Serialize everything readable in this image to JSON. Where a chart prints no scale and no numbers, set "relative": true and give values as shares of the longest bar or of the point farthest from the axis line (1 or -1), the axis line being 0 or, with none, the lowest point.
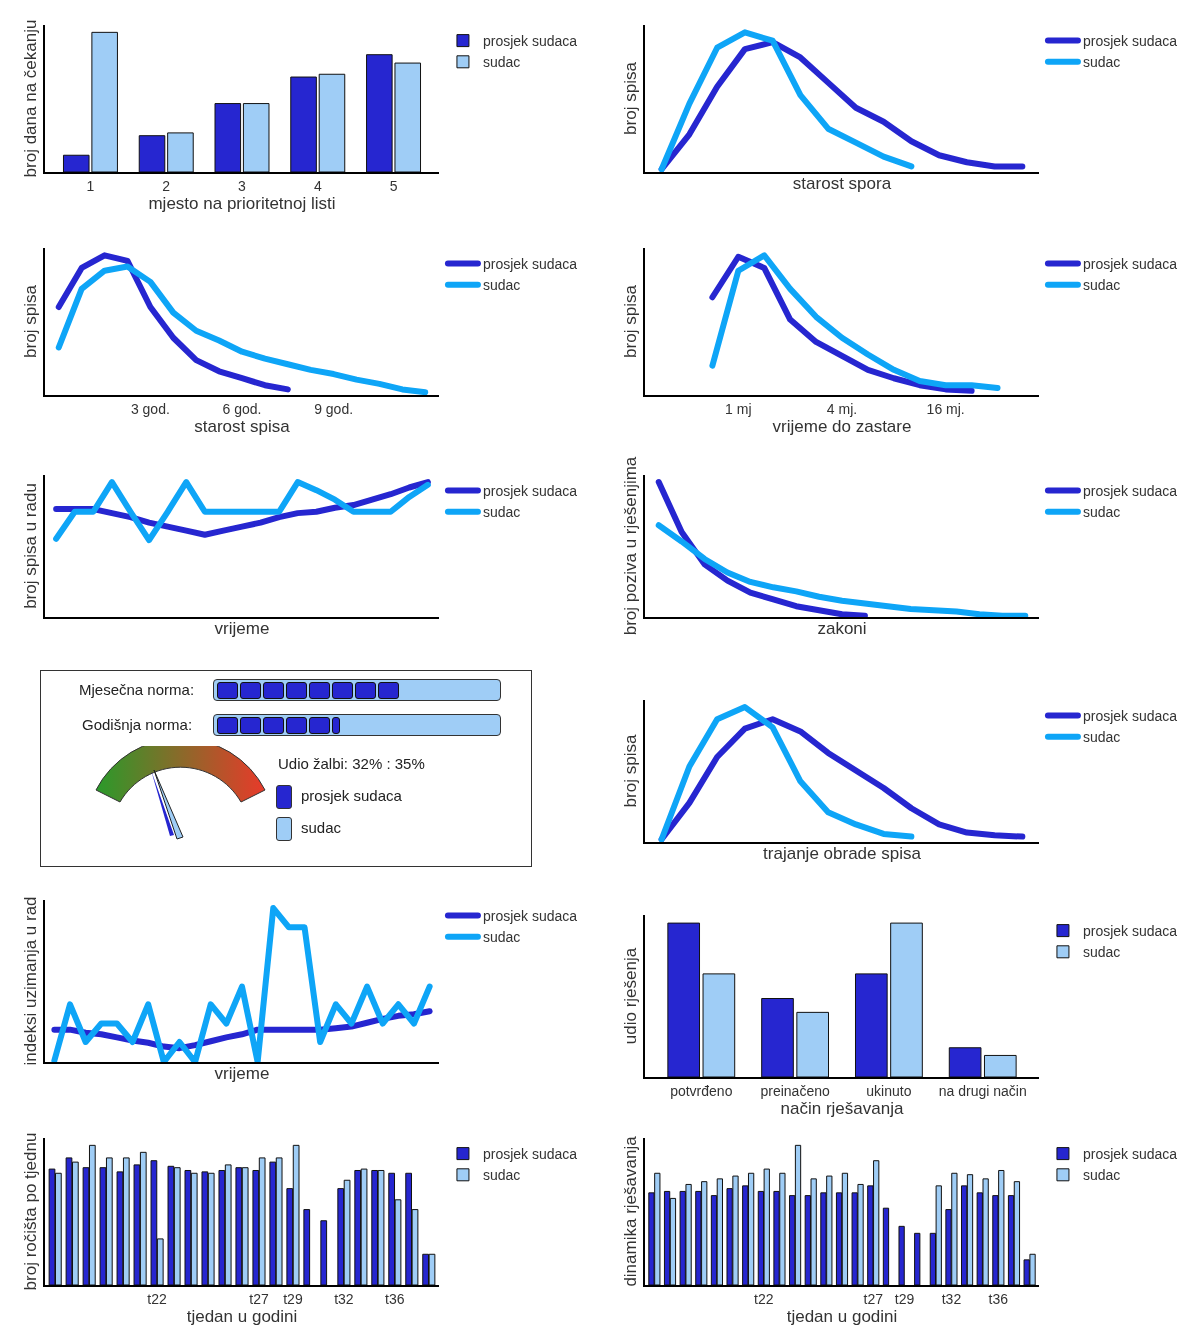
{
  "chart_data": [
    {
      "type": "bar",
      "relative": true,
      "xlabel": "mjesto na prioritetnoj listi",
      "ylabel": "broj dana na čekanju",
      "categories": [
        "1",
        "2",
        "3",
        "4",
        "5"
      ],
      "legend": "top right",
      "tick_labels": "x",
      "series": [
        {
          "name": "prosjek sudaca",
          "color": "#2626d0",
          "values": [
            0.12,
            0.26,
            0.49,
            0.68,
            0.84
          ]
        },
        {
          "name": "sudac",
          "color": "#9fcdf6",
          "values": [
            1.0,
            0.28,
            0.49,
            0.7,
            0.78
          ]
        }
      ]
    },
    {
      "type": "line",
      "relative": true,
      "xlabel": "starost spora",
      "ylabel": "broj spisa",
      "categories": [
        null,
        null,
        null,
        null,
        null,
        null,
        null,
        null,
        null,
        null,
        null,
        null,
        null,
        null
      ],
      "legend": "top right",
      "tick_labels": false,
      "series": [
        {
          "name": "prosjek sudaca",
          "color": "#2626d0",
          "values": [
            0.02,
            0.27,
            0.61,
            0.88,
            0.93,
            0.82,
            0.64,
            0.46,
            0.36,
            0.22,
            0.12,
            0.07,
            0.04,
            0.04
          ]
        },
        {
          "name": "sudac",
          "color": "#0ea5f7",
          "values": [
            0.02,
            0.49,
            0.89,
            1.0,
            0.94,
            0.55,
            0.31,
            0.21,
            0.11,
            0.04,
            null,
            null,
            null,
            null
          ]
        }
      ]
    },
    {
      "type": "line",
      "relative": true,
      "xlabel": "starost spisa",
      "ylabel": "broj spisa",
      "categories": [
        null,
        null,
        null,
        null,
        "3 god.",
        null,
        null,
        null,
        "6 god.",
        null,
        null,
        null,
        "9 god.",
        null,
        null,
        null,
        null
      ],
      "legend": "top right",
      "tick_labels": "x",
      "series": [
        {
          "name": "prosjek sudaca",
          "color": "#2626d0",
          "values": [
            0.63,
            0.91,
            1.0,
            0.96,
            0.63,
            0.41,
            0.25,
            0.17,
            0.12,
            0.07,
            0.04,
            null,
            null,
            null,
            null,
            null,
            null
          ]
        },
        {
          "name": "sudac",
          "color": "#0ea5f7",
          "values": [
            0.34,
            0.76,
            0.89,
            0.92,
            0.81,
            0.59,
            0.46,
            0.39,
            0.31,
            0.26,
            0.22,
            0.18,
            0.15,
            0.11,
            0.08,
            0.04,
            0.02
          ]
        }
      ]
    },
    {
      "type": "line",
      "relative": true,
      "xlabel": "vrijeme do zastare",
      "ylabel": "broj spisa",
      "categories": [
        null,
        null,
        null,
        "1 mj",
        null,
        null,
        null,
        "4 mj.",
        null,
        null,
        null,
        "16 mj.",
        null,
        null,
        null
      ],
      "legend": "top right",
      "tick_labels": "x",
      "series": [
        {
          "name": "prosjek sudaca",
          "color": "#2626d0",
          "values": [
            null,
            null,
            0.7,
            0.99,
            0.91,
            0.54,
            0.38,
            0.28,
            0.18,
            0.12,
            0.07,
            0.04,
            0.03,
            null,
            null
          ]
        },
        {
          "name": "sudac",
          "color": "#0ea5f7",
          "values": [
            null,
            null,
            0.21,
            0.89,
            1.0,
            0.76,
            0.56,
            0.41,
            0.29,
            0.18,
            0.1,
            0.07,
            0.07,
            0.05,
            null
          ]
        }
      ]
    },
    {
      "type": "line",
      "relative": true,
      "xlabel": "vrijeme",
      "ylabel": "broj spisa u radu",
      "categories": [
        null,
        null,
        null,
        null,
        null,
        null,
        null,
        null,
        null,
        null,
        null,
        null,
        null,
        null,
        null,
        null,
        null,
        null,
        null,
        null,
        null
      ],
      "legend": "top right",
      "tick_labels": false,
      "series": [
        {
          "name": "prosjek sudaca",
          "color": "#2626d0",
          "values": [
            0.8,
            0.8,
            0.8,
            0.77,
            0.74,
            0.7,
            0.67,
            0.64,
            0.61,
            0.64,
            0.67,
            0.7,
            0.74,
            0.77,
            0.78,
            0.81,
            0.83,
            0.87,
            0.91,
            0.96,
            1.0
          ]
        },
        {
          "name": "sudac",
          "color": "#0ea5f7",
          "values": [
            0.58,
            0.78,
            0.78,
            1.0,
            0.78,
            0.57,
            0.78,
            1.0,
            0.78,
            0.78,
            0.78,
            0.78,
            0.78,
            1.0,
            0.94,
            0.87,
            0.78,
            0.78,
            0.78,
            0.89,
            0.98
          ]
        }
      ]
    },
    {
      "type": "line",
      "relative": true,
      "xlabel": "zakoni",
      "ylabel": "broj poziva u rješenjima",
      "categories": [
        null,
        null,
        null,
        null,
        null,
        null,
        null,
        null,
        null,
        null,
        null,
        null,
        null,
        null,
        null,
        null,
        null
      ],
      "legend": "top right",
      "tick_labels": false,
      "series": [
        {
          "name": "prosjek sudaca",
          "color": "#2626d0",
          "values": [
            1.0,
            0.63,
            0.39,
            0.27,
            0.18,
            0.13,
            0.08,
            0.05,
            0.02,
            0.01,
            null,
            null,
            null,
            null,
            null,
            null,
            null
          ]
        },
        {
          "name": "sudac",
          "color": "#0ea5f7",
          "values": [
            0.68,
            0.56,
            0.43,
            0.33,
            0.26,
            0.22,
            0.19,
            0.15,
            0.12,
            0.1,
            0.08,
            0.06,
            0.05,
            0.04,
            0.02,
            0.01,
            0.01
          ]
        }
      ]
    },
    {
      "type": "other",
      "annotations": [
        "Mjesečna norma:",
        "Godišnja norma:",
        "Udio žalbi: 32% : 35%",
        "prosjek sudaca",
        "sudac"
      ]
    },
    {
      "type": "line",
      "relative": true,
      "xlabel": "trajanje obrade spisa",
      "ylabel": "broj spisa",
      "categories": [
        null,
        null,
        null,
        null,
        null,
        null,
        null,
        null,
        null,
        null,
        null,
        null,
        null,
        null
      ],
      "legend": "top right",
      "tick_labels": false,
      "series": [
        {
          "name": "prosjek sudaca",
          "color": "#2626d0",
          "values": [
            0.02,
            0.29,
            0.63,
            0.84,
            0.91,
            0.82,
            0.66,
            0.53,
            0.4,
            0.25,
            0.13,
            0.07,
            0.05,
            0.04
          ]
        },
        {
          "name": "sudac",
          "color": "#0ea5f7",
          "values": [
            0.02,
            0.56,
            0.91,
            1.0,
            0.85,
            0.45,
            0.22,
            0.13,
            0.06,
            0.04,
            null,
            null,
            null,
            null
          ]
        }
      ]
    },
    {
      "type": "line",
      "relative": true,
      "xlabel": "vrijeme",
      "ylabel": "indeksi uzimanja u rad",
      "categories": [
        null,
        null,
        null,
        null,
        null,
        null,
        null,
        null,
        null,
        null,
        null,
        null,
        null,
        null,
        null,
        null,
        null,
        null,
        null,
        null,
        null,
        null,
        null,
        null,
        null
      ],
      "legend": "top right",
      "tick_labels": false,
      "series": [
        {
          "name": "prosjek sudaca",
          "color": "#2626d0",
          "values": [
            0.21,
            0.21,
            0.19,
            0.18,
            0.16,
            0.14,
            0.125,
            0.1,
            0.09,
            0.11,
            0.135,
            0.16,
            0.18,
            0.21,
            0.21,
            0.21,
            0.21,
            0.21,
            0.22,
            0.23,
            0.255,
            0.28,
            0.3,
            0.31,
            0.33
          ]
        },
        {
          "name": "sudac",
          "color": "#0ea5f7",
          "values": [
            0.01,
            0.375,
            0.13,
            0.25,
            0.25,
            0.13,
            0.375,
            0,
            0.13,
            0,
            0.375,
            0.25,
            0.49,
            0,
            1.0,
            0.875,
            0.875,
            0.13,
            0.375,
            0.25,
            0.49,
            0.25,
            0.375,
            0.25,
            0.49
          ]
        }
      ]
    },
    {
      "type": "bar",
      "relative": true,
      "xlabel": "način rješavanja",
      "ylabel": "udio rješenja",
      "categories": [
        "potvrđeno",
        "preinačeno",
        "ukinuto",
        "na drugi način"
      ],
      "legend": "top right",
      "tick_labels": "x",
      "series": [
        {
          "name": "prosjek sudaca",
          "color": "#2626d0",
          "values": [
            1.0,
            0.51,
            0.67,
            0.19
          ]
        },
        {
          "name": "sudac",
          "color": "#9fcdf6",
          "values": [
            0.67,
            0.42,
            1.0,
            0.14
          ]
        }
      ]
    },
    {
      "type": "bar",
      "relative": true,
      "xlabel": "tjedan u godini",
      "ylabel": "broj ročišta po tjednu",
      "categories": [
        null,
        null,
        null,
        null,
        null,
        null,
        "t22",
        null,
        null,
        null,
        null,
        null,
        "t27",
        null,
        "t29",
        null,
        null,
        "t32",
        null,
        null,
        "t36",
        null,
        null
      ],
      "legend": "top right",
      "tick_labels": "x",
      "series": [
        {
          "name": "prosjek sudaca",
          "color": "#2626d0",
          "values": [
            0.83,
            0.91,
            0.84,
            0.84,
            0.81,
            0.86,
            0.89,
            0.85,
            0.82,
            0.81,
            0.82,
            0.84,
            0.82,
            0.88,
            0.69,
            0.54,
            0.46,
            0.69,
            0.82,
            0.82,
            0.8,
            0.8,
            0.22
          ]
        },
        {
          "name": "sudac",
          "color": "#9fcdf6",
          "values": [
            0.8,
            0.88,
            1.0,
            0.91,
            0.91,
            0.95,
            0.33,
            0.84,
            0.8,
            0.8,
            0.86,
            0.84,
            0.91,
            0.91,
            1.0,
            0,
            0,
            0.75,
            0.83,
            0.82,
            0.61,
            0.54,
            0.22
          ]
        }
      ]
    },
    {
      "type": "bar",
      "relative": true,
      "xlabel": "tjedan u godini",
      "ylabel": "dinamika rješavanja",
      "categories": [
        null,
        null,
        null,
        null,
        null,
        null,
        null,
        "t22",
        null,
        null,
        null,
        null,
        null,
        null,
        "t27",
        null,
        "t29",
        null,
        null,
        "t32",
        null,
        null,
        "t36",
        null,
        null
      ],
      "legend": "top right",
      "tick_labels": "x",
      "series": [
        {
          "name": "prosjek sudaca",
          "color": "#2626d0",
          "values": [
            0.66,
            0.67,
            0.67,
            0.67,
            0.64,
            0.69,
            0.71,
            0.67,
            0.67,
            0.64,
            0.64,
            0.66,
            0.66,
            0.66,
            0.71,
            0.55,
            0.42,
            0.37,
            0.37,
            0.54,
            0.71,
            0.66,
            0.64,
            0.64,
            0.18
          ]
        },
        {
          "name": "sudac",
          "color": "#9fcdf6",
          "values": [
            0.8,
            0.62,
            0.72,
            0.74,
            0.76,
            0.78,
            0.8,
            0.83,
            0.8,
            1.0,
            0.76,
            0.78,
            0.8,
            0.72,
            0.89,
            0,
            0,
            0,
            0.71,
            0.8,
            0.79,
            0.76,
            0.82,
            0.74,
            0.22
          ]
        }
      ]
    }
  ]
}
